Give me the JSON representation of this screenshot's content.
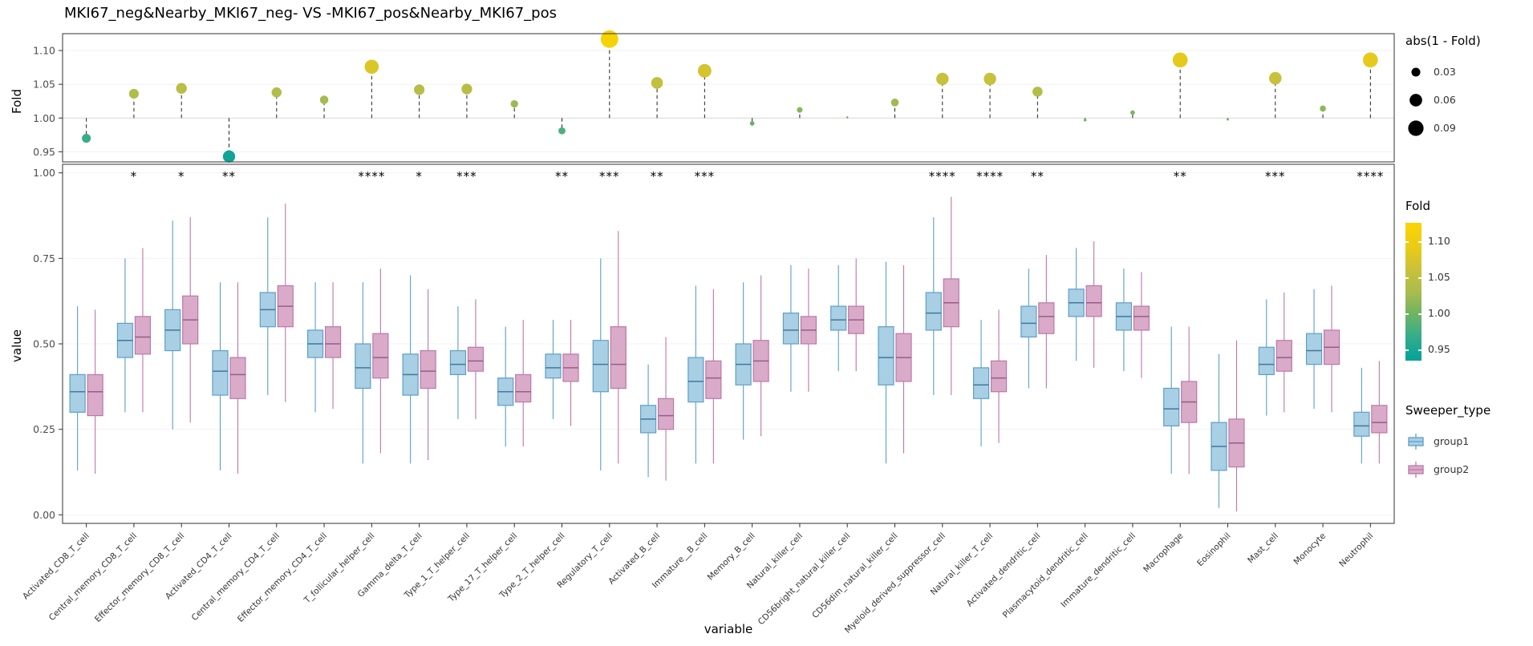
{
  "title": "MKI67_neg&Nearby_MKI67_neg- VS -MKI67_pos&Nearby_MKI67_pos",
  "axes": {
    "fold_label": "Fold",
    "value_label": "value",
    "variable_label": "variable",
    "fold_ticks": [
      1.1,
      1.05,
      1.0,
      0.95
    ],
    "value_ticks": [
      1.0,
      0.75,
      0.5,
      0.25,
      0.0
    ]
  },
  "legends": {
    "size": {
      "title": "abs(1 - Fold)",
      "breaks": [
        0.03,
        0.06,
        0.09
      ]
    },
    "fold": {
      "title": "Fold",
      "ticks": [
        1.1,
        1.05,
        1.0,
        0.95
      ]
    },
    "sweeper": {
      "title": "Sweeper_type",
      "items": [
        {
          "label": "group1",
          "fill": "#A9CFE5",
          "stroke": "#5BA0C7"
        },
        {
          "label": "group2",
          "fill": "#D9ABC9",
          "stroke": "#BC77A8"
        }
      ]
    }
  },
  "chart_data": [
    {
      "type": "scatter",
      "subtype": "lollipop",
      "title": "MKI67_neg&Nearby_MKI67_neg- VS -MKI67_pos&Nearby_MKI67_pos",
      "ylabel": "Fold",
      "ylim": [
        0.935,
        1.125
      ],
      "baseline": 1.0,
      "size_encoding": "abs(1 - Fold)",
      "categories": [
        "Activated_CD8_T_cell",
        "Central_memory_CD8_T_cell",
        "Effector_memory_CD8_T_cell",
        "Activated_CD4_T_cell",
        "Central_memory_CD4_T_cell",
        "Effector_memory_CD4_T_cell",
        "T_follicular_helper_cell",
        "Gamma_delta_T_cell",
        "Type_1_T_helper_cell",
        "Type_17_T_helper_cell",
        "Type_2_T_helper_cell",
        "Regulatory_T_cell",
        "Activated_B_cell",
        "Immature__B_cell",
        "Memory_B_cell",
        "Natural_killer_cell",
        "CD56bright_natural_killer_cell",
        "CD56dim_natural_killer_cell",
        "Myeloid_derived_suppressor_cell",
        "Natural_killer_T_cell",
        "Activated_dendritic_cell",
        "Plasmacytoid_dendritic_cell",
        "Immature_dendritic_cell",
        "Macrophage",
        "Eosinophil",
        "Mast_cell",
        "Monocyte",
        "Neutrophil"
      ],
      "fold": [
        0.97,
        1.036,
        1.044,
        0.943,
        1.038,
        1.027,
        1.076,
        1.042,
        1.043,
        1.021,
        0.981,
        1.117,
        1.052,
        1.07,
        0.992,
        1.012,
        1.001,
        1.023,
        1.058,
        1.058,
        1.039,
        0.997,
        1.008,
        1.086,
        0.998,
        1.059,
        1.014,
        1.086
      ],
      "color_scale": {
        "domain": [
          0.935,
          1.125
        ],
        "stops": [
          [
            0.94,
            "#0ba396"
          ],
          [
            0.97,
            "#37ad8a"
          ],
          [
            1.0,
            "#6fb462"
          ],
          [
            1.03,
            "#abbc4e"
          ],
          [
            1.06,
            "#c9c13a"
          ],
          [
            1.09,
            "#e9cb17"
          ],
          [
            1.12,
            "#f8d305"
          ]
        ]
      }
    },
    {
      "type": "boxplot",
      "xlabel": "variable",
      "ylabel": "value",
      "ylim": [
        0.0,
        1.0
      ],
      "categories": [
        "Activated_CD8_T_cell",
        "Central_memory_CD8_T_cell",
        "Effector_memory_CD8_T_cell",
        "Activated_CD4_T_cell",
        "Central_memory_CD4_T_cell",
        "Effector_memory_CD4_T_cell",
        "T_follicular_helper_cell",
        "Gamma_delta_T_cell",
        "Type_1_T_helper_cell",
        "Type_17_T_helper_cell",
        "Type_2_T_helper_cell",
        "Regulatory_T_cell",
        "Activated_B_cell",
        "Immature__B_cell",
        "Memory_B_cell",
        "Natural_killer_cell",
        "CD56bright_natural_killer_cell",
        "CD56dim_natural_killer_cell",
        "Myeloid_derived_suppressor_cell",
        "Natural_killer_T_cell",
        "Activated_dendritic_cell",
        "Plasmacytoid_dendritic_cell",
        "Immature_dendritic_cell",
        "Macrophage",
        "Eosinophil",
        "Mast_cell",
        "Monocyte",
        "Neutrophil"
      ],
      "significance": [
        "",
        "*",
        "*",
        "**",
        "",
        "",
        "****",
        "*",
        "***",
        "",
        "**",
        "***",
        "**",
        "***",
        "",
        "",
        "",
        "",
        "****",
        "****",
        "**",
        "",
        "",
        "**",
        "",
        "***",
        "",
        "****"
      ],
      "series": [
        {
          "name": "group1",
          "fill": "#A9CFE5",
          "stroke": "#5BA0C7",
          "median": "#41789B",
          "boxes": [
            [
              0.13,
              0.3,
              0.36,
              0.41,
              0.61
            ],
            [
              0.3,
              0.46,
              0.51,
              0.56,
              0.75
            ],
            [
              0.25,
              0.48,
              0.54,
              0.6,
              0.86
            ],
            [
              0.13,
              0.35,
              0.42,
              0.48,
              0.68
            ],
            [
              0.35,
              0.55,
              0.6,
              0.65,
              0.87
            ],
            [
              0.3,
              0.46,
              0.5,
              0.54,
              0.68
            ],
            [
              0.15,
              0.37,
              0.43,
              0.5,
              0.68
            ],
            [
              0.15,
              0.35,
              0.41,
              0.47,
              0.7
            ],
            [
              0.28,
              0.41,
              0.44,
              0.48,
              0.61
            ],
            [
              0.2,
              0.32,
              0.36,
              0.4,
              0.55
            ],
            [
              0.28,
              0.4,
              0.43,
              0.47,
              0.57
            ],
            [
              0.13,
              0.36,
              0.44,
              0.51,
              0.75
            ],
            [
              0.11,
              0.24,
              0.28,
              0.32,
              0.44
            ],
            [
              0.15,
              0.33,
              0.39,
              0.46,
              0.67
            ],
            [
              0.22,
              0.38,
              0.44,
              0.5,
              0.68
            ],
            [
              0.36,
              0.5,
              0.54,
              0.59,
              0.73
            ],
            [
              0.42,
              0.54,
              0.57,
              0.61,
              0.73
            ],
            [
              0.15,
              0.38,
              0.46,
              0.55,
              0.74
            ],
            [
              0.35,
              0.54,
              0.59,
              0.65,
              0.87
            ],
            [
              0.2,
              0.34,
              0.38,
              0.43,
              0.57
            ],
            [
              0.37,
              0.52,
              0.56,
              0.61,
              0.72
            ],
            [
              0.45,
              0.58,
              0.62,
              0.66,
              0.78
            ],
            [
              0.42,
              0.54,
              0.58,
              0.62,
              0.72
            ],
            [
              0.12,
              0.26,
              0.31,
              0.37,
              0.55
            ],
            [
              0.02,
              0.13,
              0.2,
              0.27,
              0.47
            ],
            [
              0.29,
              0.41,
              0.44,
              0.49,
              0.63
            ],
            [
              0.31,
              0.44,
              0.48,
              0.53,
              0.66
            ],
            [
              0.15,
              0.23,
              0.26,
              0.3,
              0.43
            ]
          ]
        },
        {
          "name": "group2",
          "fill": "#D9ABC9",
          "stroke": "#BC77A8",
          "median": "#975C87",
          "boxes": [
            [
              0.12,
              0.29,
              0.36,
              0.41,
              0.6
            ],
            [
              0.3,
              0.47,
              0.52,
              0.58,
              0.78
            ],
            [
              0.27,
              0.5,
              0.57,
              0.64,
              0.87
            ],
            [
              0.12,
              0.34,
              0.41,
              0.46,
              0.68
            ],
            [
              0.33,
              0.55,
              0.61,
              0.67,
              0.91
            ],
            [
              0.31,
              0.46,
              0.5,
              0.55,
              0.68
            ],
            [
              0.18,
              0.4,
              0.46,
              0.53,
              0.72
            ],
            [
              0.16,
              0.37,
              0.42,
              0.48,
              0.66
            ],
            [
              0.28,
              0.42,
              0.45,
              0.49,
              0.63
            ],
            [
              0.2,
              0.33,
              0.36,
              0.41,
              0.57
            ],
            [
              0.26,
              0.39,
              0.43,
              0.47,
              0.57
            ],
            [
              0.15,
              0.37,
              0.44,
              0.55,
              0.83
            ],
            [
              0.1,
              0.25,
              0.29,
              0.34,
              0.52
            ],
            [
              0.15,
              0.34,
              0.4,
              0.45,
              0.66
            ],
            [
              0.23,
              0.39,
              0.45,
              0.51,
              0.7
            ],
            [
              0.36,
              0.5,
              0.54,
              0.58,
              0.72
            ],
            [
              0.42,
              0.53,
              0.57,
              0.61,
              0.75
            ],
            [
              0.18,
              0.39,
              0.46,
              0.53,
              0.73
            ],
            [
              0.35,
              0.55,
              0.62,
              0.69,
              0.93
            ],
            [
              0.21,
              0.36,
              0.4,
              0.45,
              0.6
            ],
            [
              0.37,
              0.53,
              0.58,
              0.62,
              0.76
            ],
            [
              0.43,
              0.58,
              0.62,
              0.67,
              0.8
            ],
            [
              0.4,
              0.54,
              0.58,
              0.61,
              0.71
            ],
            [
              0.12,
              0.27,
              0.33,
              0.39,
              0.55
            ],
            [
              0.01,
              0.14,
              0.21,
              0.28,
              0.51
            ],
            [
              0.3,
              0.42,
              0.46,
              0.51,
              0.65
            ],
            [
              0.3,
              0.44,
              0.49,
              0.54,
              0.67
            ],
            [
              0.15,
              0.24,
              0.27,
              0.32,
              0.45
            ]
          ]
        }
      ]
    }
  ]
}
